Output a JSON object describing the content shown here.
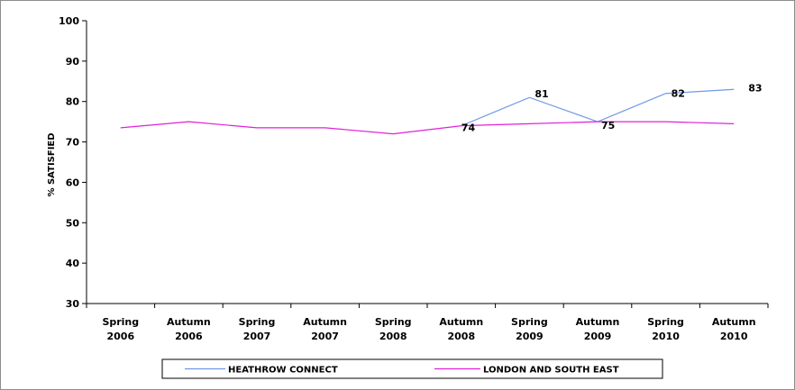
{
  "chart_data": {
    "type": "line",
    "title": "",
    "xlabel": "",
    "ylabel": "% SATISFIED",
    "ylim": [
      30,
      100
    ],
    "yticks": [
      30,
      40,
      50,
      60,
      70,
      80,
      90,
      100
    ],
    "grid": false,
    "legend_position": "bottom",
    "categories": [
      [
        "Spring",
        "2006"
      ],
      [
        "Autumn",
        "2006"
      ],
      [
        "Spring",
        "2007"
      ],
      [
        "Autumn",
        "2007"
      ],
      [
        "Spring",
        "2008"
      ],
      [
        "Autumn",
        "2008"
      ],
      [
        "Spring",
        "2009"
      ],
      [
        "Autumn",
        "2009"
      ],
      [
        "Spring",
        "2010"
      ],
      [
        "Autumn",
        "2010"
      ]
    ],
    "series": [
      {
        "name": "HEATHROW CONNECT",
        "color": "#6f98e6",
        "values": [
          null,
          null,
          null,
          null,
          null,
          74,
          81,
          75,
          82,
          83
        ],
        "labels": [
          null,
          null,
          null,
          null,
          null,
          "74",
          "81",
          "75",
          "82",
          "83"
        ]
      },
      {
        "name": "LONDON AND SOUTH EAST",
        "color": "#e020d8",
        "values": [
          73.5,
          75,
          73.5,
          73.5,
          72,
          74,
          74.5,
          75,
          75,
          74.5
        ],
        "labels": [
          null,
          null,
          null,
          null,
          null,
          null,
          null,
          null,
          null,
          null
        ]
      }
    ]
  }
}
